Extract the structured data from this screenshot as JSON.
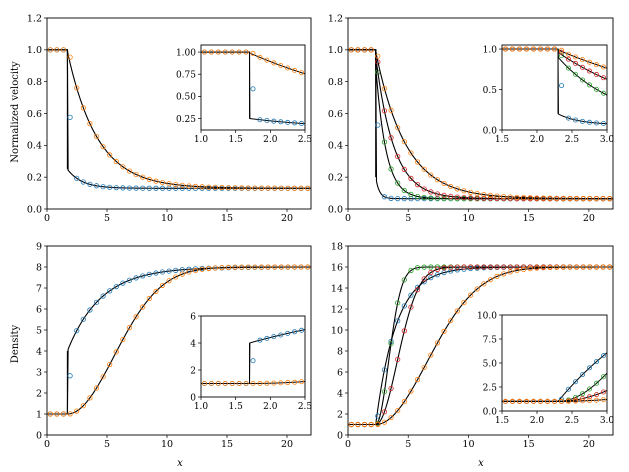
{
  "figure": {
    "ylabel_top": "Normalized velocity",
    "ylabel_bottom": "Density",
    "xlabel": "x"
  },
  "colors": {
    "blue": "#1f77b4",
    "orange": "#ff7f0e",
    "green": "#2ca02c",
    "red": "#d62728",
    "purple": "#9467bd",
    "line": "#000000"
  },
  "chart_data": [
    {
      "id": "top_left",
      "type": "line",
      "xlim": [
        0,
        22
      ],
      "ylim": [
        0,
        1.2
      ],
      "xticks": [
        0,
        5,
        10,
        15,
        20
      ],
      "yticks": [
        0.0,
        0.2,
        0.4,
        0.6,
        0.8,
        1.0,
        1.2
      ],
      "ylabel": "Normalized velocity",
      "xlabel": "",
      "series": [
        {
          "name": "blue",
          "kind": "velocity",
          "x0": 1.7,
          "v_after": 0.25,
          "decay": 1.2,
          "final": 0.13,
          "color": "blue"
        },
        {
          "name": "orange",
          "kind": "velocity",
          "x0": 1.7,
          "v_after": 0.99,
          "decay": 2.5,
          "final": 0.13,
          "color": "orange"
        }
      ],
      "inset": {
        "xlim": [
          1.0,
          2.5
        ],
        "ylim": [
          0.12,
          1.08
        ],
        "xticks": [
          1.0,
          1.5,
          2.0,
          2.5
        ],
        "yticks": [
          0.25,
          0.5,
          0.75,
          1.0
        ],
        "tick_format": 2
      }
    },
    {
      "id": "top_right",
      "type": "line",
      "xlim": [
        0,
        22
      ],
      "ylim": [
        0,
        1.2
      ],
      "xticks": [
        0,
        5,
        10,
        15,
        20
      ],
      "yticks": [
        0.0,
        0.2,
        0.4,
        0.6,
        0.8,
        1.0,
        1.2
      ],
      "ylabel": "",
      "xlabel": "",
      "series": [
        {
          "name": "blue",
          "kind": "velocity",
          "x0": 2.3,
          "v_after": 0.2,
          "decay": 0.3,
          "final": 0.065,
          "color": "blue"
        },
        {
          "name": "green",
          "kind": "velocity",
          "x0": 2.3,
          "v_after": 0.9,
          "decay": 0.85,
          "final": 0.065,
          "color": "green"
        },
        {
          "name": "red",
          "kind": "velocity",
          "x0": 2.3,
          "v_after": 0.96,
          "decay": 1.5,
          "final": 0.065,
          "color": "red"
        },
        {
          "name": "orange",
          "kind": "velocity",
          "x0": 2.3,
          "v_after": 0.99,
          "decay": 2.5,
          "final": 0.065,
          "color": "orange"
        }
      ],
      "inset": {
        "xlim": [
          1.5,
          3.0
        ],
        "ylim": [
          0.0,
          1.05
        ],
        "xticks": [
          1.5,
          2.0,
          2.5,
          3.0
        ],
        "yticks": [
          0.0,
          0.5,
          1.0
        ],
        "tick_format": 1
      }
    },
    {
      "id": "bottom_left",
      "type": "line",
      "xlim": [
        0,
        22
      ],
      "ylim": [
        0,
        9
      ],
      "xticks": [
        0,
        5,
        10,
        15,
        20
      ],
      "yticks": [
        0,
        1,
        2,
        3,
        4,
        5,
        6,
        7,
        8,
        9
      ],
      "ylabel": "Density",
      "xlabel": "x",
      "series": [
        {
          "name": "blue",
          "kind": "density",
          "x0": 1.7,
          "jump": 4.0,
          "scale": 2.8,
          "power": 1,
          "final": 8.0,
          "base": 1.0,
          "color": "blue"
        },
        {
          "name": "orange",
          "kind": "density",
          "x0": 1.7,
          "jump": 1.0,
          "scale": 5.5,
          "power": 2,
          "final": 8.0,
          "base": 1.0,
          "color": "orange"
        }
      ],
      "inset": {
        "xlim": [
          1.0,
          2.5
        ],
        "ylim": [
          0,
          6
        ],
        "xticks": [
          1.0,
          1.5,
          2.0,
          2.5
        ],
        "yticks": [
          0,
          2,
          4,
          6
        ],
        "tick_format": 0
      }
    },
    {
      "id": "bottom_right",
      "type": "line",
      "xlim": [
        0,
        22
      ],
      "ylim": [
        0,
        18
      ],
      "xticks": [
        0,
        5,
        10,
        15,
        20
      ],
      "yticks": [
        0,
        2,
        4,
        6,
        8,
        10,
        12,
        14,
        16,
        18
      ],
      "ylabel": "",
      "xlabel": "x",
      "series": [
        {
          "name": "blue",
          "kind": "density",
          "x0": 2.3,
          "jump": 1.0,
          "scale": 1.7,
          "power": 1,
          "final": 16.0,
          "base": 1.0,
          "color": "blue"
        },
        {
          "name": "green",
          "kind": "density",
          "x0": 2.3,
          "jump": 1.0,
          "scale": 1.5,
          "power": 2,
          "final": 16.0,
          "base": 1.0,
          "color": "green"
        },
        {
          "name": "red",
          "kind": "density",
          "x0": 2.3,
          "jump": 1.0,
          "scale": 2.5,
          "power": 2,
          "final": 16.0,
          "base": 1.0,
          "color": "red"
        },
        {
          "name": "orange",
          "kind": "density",
          "x0": 2.3,
          "jump": 1.0,
          "scale": 6.0,
          "power": 2,
          "final": 16.0,
          "base": 1.0,
          "color": "orange"
        }
      ],
      "inset": {
        "xlim": [
          1.5,
          3.0
        ],
        "ylim": [
          0,
          10
        ],
        "xticks": [
          1.5,
          2.0,
          2.5,
          3.0
        ],
        "yticks": [
          0.0,
          2.5,
          5.0,
          7.5,
          10.0
        ],
        "tick_format": 1
      }
    }
  ]
}
